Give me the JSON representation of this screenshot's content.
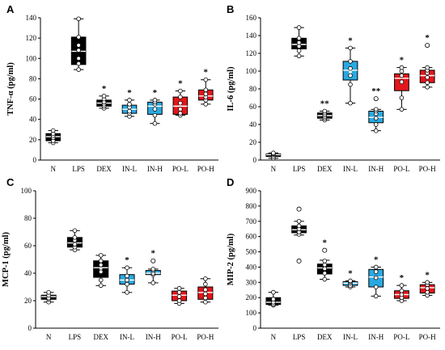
{
  "figure": {
    "categories": [
      "N",
      "LPS",
      "DEX",
      "IN-L",
      "IN-H",
      "PO-L",
      "PO-H"
    ],
    "colors": {
      "N": "#000000",
      "LPS": "#000000",
      "DEX": "#000000",
      "IN-L": "#29a9e1",
      "IN-H": "#29a9e1",
      "PO-L": "#e3161b",
      "PO-H": "#e3161b"
    }
  },
  "chart_data": [
    {
      "type": "box",
      "panel": "A",
      "ylabel": "TNF-α (pg/ml)",
      "ylim": [
        0,
        140
      ],
      "yticks": [
        0,
        20,
        40,
        60,
        80,
        100,
        120,
        140
      ],
      "categories": [
        "N",
        "LPS",
        "DEX",
        "IN-L",
        "IN-H",
        "PO-L",
        "PO-H"
      ],
      "boxes": [
        {
          "min": 17,
          "q1": 19,
          "median": 23,
          "q3": 26,
          "max": 29,
          "mean": 23,
          "points": [
            17,
            19,
            22,
            24,
            26,
            29
          ],
          "outliers": [],
          "sig": ""
        },
        {
          "min": 89,
          "q1": 94,
          "median": 107,
          "q3": 121,
          "max": 139,
          "mean": 108,
          "points": [
            89,
            95,
            100,
            108,
            113,
            121,
            139
          ],
          "outliers": [],
          "sig": ""
        },
        {
          "min": 51,
          "q1": 53,
          "median": 56,
          "q3": 59,
          "max": 63,
          "mean": 56,
          "points": [
            51,
            53,
            55,
            57,
            60,
            63
          ],
          "outliers": [],
          "sig": "*"
        },
        {
          "min": 43,
          "q1": 46,
          "median": 50,
          "q3": 54,
          "max": 59,
          "mean": 50,
          "points": [
            43,
            46,
            48,
            52,
            55,
            59
          ],
          "outliers": [],
          "sig": "*"
        },
        {
          "min": 36,
          "q1": 45,
          "median": 53,
          "q3": 57,
          "max": 59,
          "mean": 52,
          "points": [
            36,
            44,
            50,
            55,
            57,
            59
          ],
          "outliers": [],
          "sig": "*"
        },
        {
          "min": 44,
          "q1": 45,
          "median": 53,
          "q3": 62,
          "max": 68,
          "mean": 54,
          "points": [
            44,
            46,
            50,
            56,
            62,
            68
          ],
          "outliers": [],
          "sig": "*"
        },
        {
          "min": 55,
          "q1": 59,
          "median": 63,
          "q3": 69,
          "max": 79,
          "mean": 64,
          "points": [
            55,
            59,
            62,
            65,
            69,
            79
          ],
          "outliers": [],
          "sig": "*"
        }
      ]
    },
    {
      "type": "box",
      "panel": "B",
      "ylabel": "IL-6 (pg/ml)",
      "ylim": [
        0,
        160
      ],
      "yticks": [
        0,
        20,
        40,
        60,
        80,
        100,
        120,
        140,
        160
      ],
      "categories": [
        "N",
        "LPS",
        "DEX",
        "IN-L",
        "IN-H",
        "PO-L",
        "PO-H"
      ],
      "boxes": [
        {
          "min": 2,
          "q1": 4,
          "median": 6,
          "q3": 7,
          "max": 8,
          "mean": 5,
          "points": [
            2,
            4,
            6,
            7,
            8
          ],
          "outliers": [],
          "sig": ""
        },
        {
          "min": 117,
          "q1": 125,
          "median": 130,
          "q3": 137,
          "max": 149,
          "mean": 131,
          "points": [
            117,
            123,
            128,
            132,
            137,
            149
          ],
          "outliers": [],
          "sig": ""
        },
        {
          "min": 45,
          "q1": 47,
          "median": 50,
          "q3": 53,
          "max": 55,
          "mean": 50,
          "points": [
            45,
            47,
            49,
            51,
            53,
            55
          ],
          "outliers": [],
          "sig": "**"
        },
        {
          "min": 64,
          "q1": 90,
          "median": 101,
          "q3": 111,
          "max": 126,
          "mean": 99,
          "points": [
            64,
            85,
            95,
            103,
            111,
            126
          ],
          "outliers": [],
          "sig": "*"
        },
        {
          "min": 33,
          "q1": 42,
          "median": 48,
          "q3": 55,
          "max": 57,
          "mean": 48,
          "points": [
            33,
            40,
            47,
            52,
            55,
            57
          ],
          "outliers": [
            69
          ],
          "sig": "**"
        },
        {
          "min": 57,
          "q1": 78,
          "median": 92,
          "q3": 97,
          "max": 104,
          "mean": 87,
          "points": [
            57,
            70,
            88,
            95,
            100,
            104
          ],
          "outliers": [],
          "sig": "*"
        },
        {
          "min": 82,
          "q1": 87,
          "median": 95,
          "q3": 101,
          "max": 104,
          "mean": 94,
          "points": [
            82,
            87,
            93,
            98,
            101,
            104
          ],
          "outliers": [
            129
          ],
          "sig": "*"
        }
      ]
    },
    {
      "type": "box",
      "panel": "C",
      "ylabel": "MCP-1 (pg/ml)",
      "ylim": [
        0,
        100
      ],
      "yticks": [
        0,
        20,
        40,
        60,
        80,
        100
      ],
      "categories": [
        "N",
        "LPS",
        "DEX",
        "IN-L",
        "IN-H",
        "PO-L",
        "PO-H"
      ],
      "boxes": [
        {
          "min": 19,
          "q1": 21,
          "median": 23,
          "q3": 24,
          "max": 26,
          "mean": 23,
          "points": [
            19,
            21,
            22,
            24,
            26
          ],
          "outliers": [],
          "sig": ""
        },
        {
          "min": 57,
          "q1": 59,
          "median": 62,
          "q3": 66,
          "max": 71,
          "mean": 63,
          "points": [
            57,
            59,
            61,
            64,
            66,
            71
          ],
          "outliers": [],
          "sig": ""
        },
        {
          "min": 31,
          "q1": 37,
          "median": 44,
          "q3": 49,
          "max": 53,
          "mean": 43,
          "points": [
            31,
            35,
            41,
            46,
            49,
            53
          ],
          "outliers": [],
          "sig": ""
        },
        {
          "min": 26,
          "q1": 32,
          "median": 35,
          "q3": 39,
          "max": 44,
          "mean": 35,
          "points": [
            26,
            32,
            35,
            38,
            44
          ],
          "outliers": [],
          "sig": "*"
        },
        {
          "min": 33,
          "q1": 39,
          "median": 40,
          "q3": 42,
          "max": 43,
          "mean": 40,
          "points": [
            33,
            39,
            40,
            42,
            43
          ],
          "outliers": [
            49
          ],
          "sig": "*"
        },
        {
          "min": 18,
          "q1": 20,
          "median": 24,
          "q3": 27,
          "max": 29,
          "mean": 24,
          "points": [
            18,
            20,
            23,
            26,
            29
          ],
          "outliers": [],
          "sig": ""
        },
        {
          "min": 19,
          "q1": 21,
          "median": 26,
          "q3": 30,
          "max": 36,
          "mean": 26,
          "points": [
            19,
            22,
            25,
            28,
            32,
            36
          ],
          "outliers": [],
          "sig": ""
        }
      ]
    },
    {
      "type": "box",
      "panel": "D",
      "ylabel": "MIP-2 (pg/ml)",
      "ylim": [
        0,
        900
      ],
      "yticks": [
        0,
        100,
        200,
        300,
        400,
        500,
        600,
        700,
        800,
        900
      ],
      "categories": [
        "N",
        "LPS",
        "DEX",
        "IN-L",
        "IN-H",
        "PO-L",
        "PO-H"
      ],
      "boxes": [
        {
          "min": 150,
          "q1": 155,
          "median": 170,
          "q3": 200,
          "max": 235,
          "mean": 175,
          "points": [
            150,
            158,
            170,
            190,
            235
          ],
          "outliers": [],
          "sig": ""
        },
        {
          "min": 610,
          "q1": 625,
          "median": 645,
          "q3": 670,
          "max": 700,
          "mean": 640,
          "points": [
            615,
            630,
            650,
            670,
            700
          ],
          "outliers": [
            440,
            780
          ],
          "sig": ""
        },
        {
          "min": 320,
          "q1": 355,
          "median": 395,
          "q3": 420,
          "max": 445,
          "mean": 390,
          "points": [
            320,
            360,
            390,
            415,
            440
          ],
          "outliers": [
            510
          ],
          "sig": "*"
        },
        {
          "min": 270,
          "q1": 280,
          "median": 295,
          "q3": 305,
          "max": 310,
          "mean": 293,
          "points": [
            270,
            280,
            295,
            305,
            310
          ],
          "outliers": [],
          "sig": "*"
        },
        {
          "min": 210,
          "q1": 270,
          "median": 335,
          "q3": 385,
          "max": 400,
          "mean": 325,
          "points": [
            210,
            270,
            330,
            370,
            400
          ],
          "outliers": [],
          "sig": "*"
        },
        {
          "min": 180,
          "q1": 195,
          "median": 220,
          "q3": 245,
          "max": 280,
          "mean": 222,
          "points": [
            180,
            200,
            220,
            245,
            280
          ],
          "outliers": [],
          "sig": "*"
        },
        {
          "min": 215,
          "q1": 230,
          "median": 265,
          "q3": 285,
          "max": 300,
          "mean": 260,
          "points": [
            215,
            235,
            260,
            285,
            300
          ],
          "outliers": [],
          "sig": "*"
        }
      ]
    }
  ]
}
